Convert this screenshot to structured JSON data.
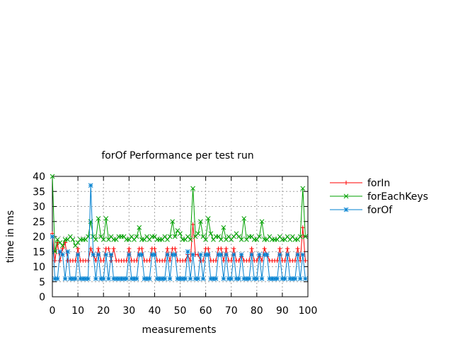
{
  "chart_data": {
    "type": "line",
    "title": "forOf Performance per test run",
    "xlabel": "measurements",
    "ylabel": "time in ms",
    "xlim": [
      0,
      100
    ],
    "ylim": [
      0,
      40
    ],
    "xticks": [
      "0",
      "10",
      "20",
      "30",
      "40",
      "50",
      "60",
      "70",
      "80",
      "90",
      "100"
    ],
    "yticks": [
      "0",
      "5",
      "10",
      "15",
      "20",
      "25",
      "30",
      "35",
      "40"
    ],
    "grid": true,
    "legend_position": "right",
    "x": [
      0,
      1,
      2,
      3,
      4,
      5,
      6,
      7,
      8,
      9,
      10,
      11,
      12,
      13,
      14,
      15,
      16,
      17,
      18,
      19,
      20,
      21,
      22,
      23,
      24,
      25,
      26,
      27,
      28,
      29,
      30,
      31,
      32,
      33,
      34,
      35,
      36,
      37,
      38,
      39,
      40,
      41,
      42,
      43,
      44,
      45,
      46,
      47,
      48,
      49,
      50,
      51,
      52,
      53,
      54,
      55,
      56,
      57,
      58,
      59,
      60,
      61,
      62,
      63,
      64,
      65,
      66,
      67,
      68,
      69,
      70,
      71,
      72,
      73,
      74,
      75,
      76,
      77,
      78,
      79,
      80,
      81,
      82,
      83,
      84,
      85,
      86,
      87,
      88,
      89,
      90,
      91,
      92,
      93,
      94,
      95,
      96,
      97,
      98,
      99
    ],
    "series": [
      {
        "name": "forIn",
        "color": "#ff0000",
        "marker": "plus",
        "values": [
          21,
          12,
          18,
          12,
          16,
          18,
          12,
          12,
          12,
          12,
          16,
          12,
          12,
          12,
          12,
          16,
          14,
          12,
          16,
          12,
          12,
          16,
          16,
          12,
          16,
          12,
          12,
          12,
          12,
          12,
          16,
          12,
          12,
          12,
          16,
          16,
          12,
          12,
          12,
          16,
          16,
          12,
          12,
          12,
          12,
          16,
          12,
          16,
          16,
          12,
          12,
          12,
          12,
          14,
          12,
          24,
          14,
          14,
          12,
          12,
          16,
          16,
          12,
          12,
          12,
          16,
          16,
          12,
          16,
          12,
          12,
          16,
          12,
          12,
          14,
          12,
          12,
          12,
          16,
          12,
          12,
          14,
          12,
          16,
          14,
          12,
          12,
          12,
          12,
          16,
          12,
          12,
          16,
          12,
          12,
          12,
          16,
          12,
          23,
          12
        ]
      },
      {
        "name": "forEachKeys",
        "color": "#00a000",
        "marker": "cross",
        "values": [
          40,
          15,
          19,
          18,
          17,
          19,
          19,
          20,
          19,
          17,
          18,
          19,
          19,
          19,
          20,
          25,
          20,
          19,
          26,
          20,
          19,
          26,
          19,
          20,
          19,
          19,
          20,
          20,
          20,
          19,
          19,
          20,
          19,
          20,
          23,
          19,
          19,
          20,
          19,
          20,
          20,
          19,
          19,
          19,
          20,
          19,
          20,
          25,
          20,
          22,
          21,
          19,
          19,
          20,
          19,
          36,
          20,
          21,
          25,
          20,
          19,
          26,
          21,
          19,
          20,
          20,
          19,
          23,
          19,
          20,
          19,
          20,
          21,
          20,
          19,
          26,
          19,
          20,
          20,
          19,
          19,
          20,
          25,
          19,
          19,
          20,
          19,
          19,
          19,
          20,
          19,
          19,
          20,
          19,
          20,
          19,
          19,
          20,
          36,
          20
        ]
      },
      {
        "name": "forOf",
        "color": "#0080d0",
        "marker": "star",
        "values": [
          20,
          6,
          6,
          15,
          14,
          6,
          15,
          6,
          6,
          6,
          14,
          6,
          6,
          6,
          6,
          37,
          14,
          6,
          14,
          6,
          6,
          14,
          6,
          14,
          6,
          6,
          6,
          6,
          6,
          6,
          14,
          6,
          6,
          6,
          14,
          14,
          6,
          6,
          6,
          14,
          14,
          6,
          6,
          6,
          6,
          14,
          6,
          14,
          14,
          6,
          6,
          6,
          6,
          15,
          6,
          14,
          6,
          6,
          14,
          6,
          14,
          14,
          6,
          6,
          6,
          14,
          14,
          6,
          14,
          6,
          6,
          14,
          6,
          6,
          14,
          6,
          6,
          6,
          14,
          6,
          6,
          14,
          6,
          14,
          14,
          6,
          6,
          6,
          6,
          14,
          6,
          6,
          14,
          6,
          6,
          6,
          14,
          6,
          14,
          6
        ]
      }
    ]
  }
}
